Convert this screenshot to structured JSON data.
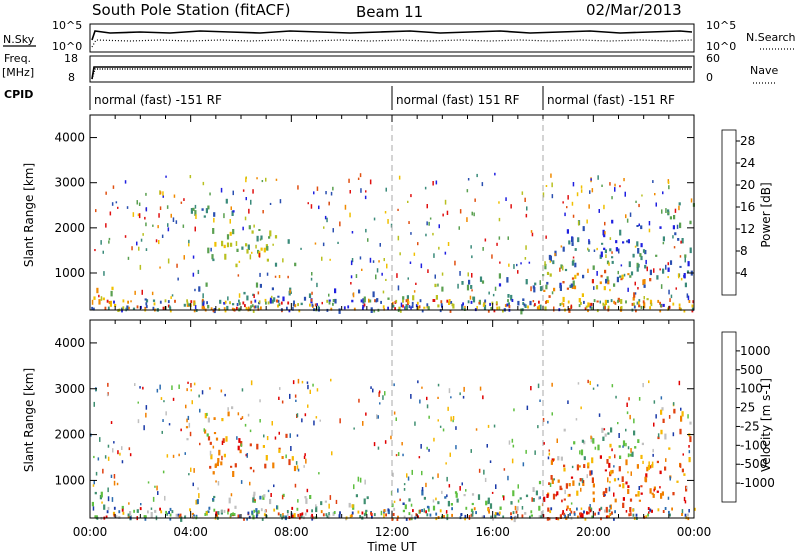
{
  "header": {
    "station": "South Pole Station (fitACF)",
    "beam": "Beam 11",
    "date": "02/Mar/2013"
  },
  "summary_panels": {
    "nsky_label": "N.Sky",
    "nsearch_label": "N.Search",
    "nsky_ticks": [
      "10^5",
      "10^0"
    ],
    "nsearch_ticks": [
      "10^5",
      "10^0"
    ],
    "freq_label": "Freq.",
    "freq_unit": "[MHz]",
    "freq_ticks": [
      "18",
      "8"
    ],
    "nave_label": "Nave",
    "nave_ticks": [
      "60",
      "0"
    ],
    "cpid_label": "CPID",
    "cpid_segments": [
      {
        "start": 0,
        "end": 12,
        "label": "normal (fast) -151 RF"
      },
      {
        "start": 12,
        "end": 18,
        "label": "normal (fast) 151 RF"
      },
      {
        "start": 18,
        "end": 24,
        "label": "normal (fast) -151 RF"
      }
    ]
  },
  "x_axis": {
    "label": "Time UT",
    "ticks": [
      "00:00",
      "04:00",
      "08:00",
      "12:00",
      "16:00",
      "20:00",
      "00:00"
    ]
  },
  "colors": {
    "power_scale": [
      "#1f1fe0",
      "#2a4fb0",
      "#3a8a7a",
      "#5aa050",
      "#b8c020",
      "#f0c000",
      "#f08a00",
      "#e05010",
      "#e01010"
    ],
    "velocity_scale": [
      "#1a3aa8",
      "#2b6cb0",
      "#3f8f70",
      "#5fbf40",
      "#c0c0c0",
      "#f6b800",
      "#f08000",
      "#e04010",
      "#e00000"
    ]
  },
  "chart_data": [
    {
      "type": "heatmap",
      "panel": "power",
      "xlabel": "Time UT",
      "ylabel": "Slant Range [km]",
      "xlim": [
        0,
        24
      ],
      "ylim": [
        180,
        4500
      ],
      "yticks": [
        1000,
        2000,
        3000,
        4000
      ],
      "vertical_dashed_lines": [
        12,
        18
      ],
      "colorbar": {
        "label": "Power [dB]",
        "ticks": [
          4,
          8,
          12,
          16,
          20,
          24,
          28
        ],
        "range": [
          0,
          30
        ]
      },
      "regions": [
        {
          "t": [
            0.0,
            1.2
          ],
          "r": [
            200,
            800
          ],
          "level": 0.55
        },
        {
          "t": [
            1.0,
            3.8
          ],
          "r": [
            200,
            450
          ],
          "level": 0.2
        },
        {
          "t": [
            3.7,
            4.2
          ],
          "r": [
            200,
            600
          ],
          "level": 0.7
        },
        {
          "t": [
            4.5,
            8.2
          ],
          "r": [
            1200,
            2100
          ],
          "level": 0.45
        },
        {
          "t": [
            3.8,
            5.0
          ],
          "r": [
            1900,
            2500
          ],
          "level": 0.3
        },
        {
          "t": [
            5.2,
            5.8
          ],
          "r": [
            2300,
            2700
          ],
          "level": 0.15
        },
        {
          "t": [
            4.2,
            8.0
          ],
          "r": [
            200,
            800
          ],
          "level": 0.25
        },
        {
          "t": [
            8.0,
            11.5
          ],
          "r": [
            200,
            700
          ],
          "level": 0.2
        },
        {
          "t": [
            11.8,
            14.5
          ],
          "r": [
            250,
            800
          ],
          "level": 0.45
        },
        {
          "t": [
            14.5,
            18.0
          ],
          "r": [
            200,
            1000
          ],
          "level": 0.25
        },
        {
          "t": [
            18.0,
            22.5
          ],
          "r": [
            200,
            1100
          ],
          "level": 0.7
        },
        {
          "t": [
            18.0,
            24.0
          ],
          "r": [
            700,
            1600
          ],
          "level": 0.25
        },
        {
          "t": [
            22.5,
            24.0
          ],
          "r": [
            1700,
            2600
          ],
          "level": 0.25
        },
        {
          "t": [
            18.5,
            22.0
          ],
          "r": [
            1500,
            2200
          ],
          "level": 0.15
        }
      ]
    },
    {
      "type": "heatmap",
      "panel": "velocity",
      "xlabel": "Time UT",
      "ylabel": "Slant Range [km]",
      "xlim": [
        0,
        24
      ],
      "ylim": [
        180,
        4500
      ],
      "yticks": [
        1000,
        2000,
        3000,
        4000
      ],
      "vertical_dashed_lines": [
        12,
        18
      ],
      "colorbar": {
        "label": "Velocity [m s-1]",
        "ticks": [
          "1000",
          "500",
          "100",
          "25",
          "-25",
          "-100",
          "-500",
          "-1000"
        ]
      },
      "regions": [
        {
          "t": [
            0.0,
            1.2
          ],
          "r": [
            200,
            800
          ],
          "level": 0.45
        },
        {
          "t": [
            1.0,
            3.8
          ],
          "r": [
            200,
            450
          ],
          "level": 0.4
        },
        {
          "t": [
            3.7,
            4.2
          ],
          "r": [
            200,
            600
          ],
          "level": 0.7
        },
        {
          "t": [
            4.5,
            8.2
          ],
          "r": [
            1200,
            2100
          ],
          "level": 0.8
        },
        {
          "t": [
            3.8,
            5.0
          ],
          "r": [
            1900,
            2500
          ],
          "level": 0.55
        },
        {
          "t": [
            5.2,
            5.8
          ],
          "r": [
            2300,
            2700
          ],
          "level": 0.5
        },
        {
          "t": [
            4.2,
            8.0
          ],
          "r": [
            200,
            800
          ],
          "level": 0.35
        },
        {
          "t": [
            8.0,
            11.5
          ],
          "r": [
            200,
            700
          ],
          "level": 0.4
        },
        {
          "t": [
            11.8,
            14.5
          ],
          "r": [
            250,
            800
          ],
          "level": 0.25
        },
        {
          "t": [
            14.5,
            18.0
          ],
          "r": [
            200,
            1000
          ],
          "level": 0.4
        },
        {
          "t": [
            18.0,
            22.5
          ],
          "r": [
            200,
            1100
          ],
          "level": 0.82
        },
        {
          "t": [
            18.0,
            24.0
          ],
          "r": [
            700,
            1600
          ],
          "level": 0.75
        },
        {
          "t": [
            22.5,
            24.0
          ],
          "r": [
            1700,
            2600
          ],
          "level": 0.7
        },
        {
          "t": [
            18.5,
            22.0
          ],
          "r": [
            1500,
            2200
          ],
          "level": 0.4
        }
      ]
    }
  ]
}
